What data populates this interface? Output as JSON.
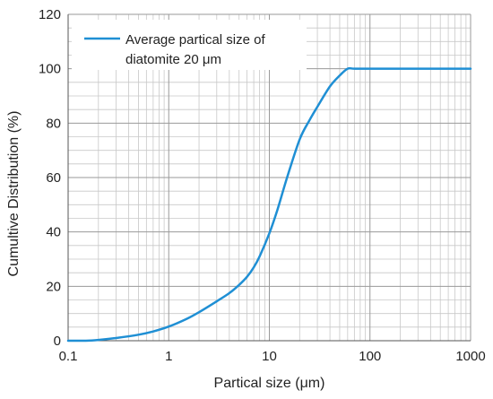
{
  "chart_data": {
    "type": "line",
    "title": "",
    "xlabel": "Partical size (μm)",
    "ylabel": "Cumultive Distribution (%)",
    "x_scale": "log",
    "xlim": [
      0.1,
      1000
    ],
    "ylim": [
      0,
      120
    ],
    "x_ticks": [
      "0.1",
      "1",
      "10",
      "100",
      "1000"
    ],
    "y_ticks": [
      "0",
      "20",
      "40",
      "60",
      "80",
      "100",
      "120"
    ],
    "grid": true,
    "legend_position": "top-left",
    "legend_lines": [
      "Average partical size of",
      "diatomite 20 μm"
    ],
    "series": [
      {
        "name": "Average partical size of diatomite 20 μm",
        "color": "#1f8fd4",
        "x": [
          0.1,
          0.15,
          0.2,
          0.3,
          0.5,
          0.7,
          1,
          1.5,
          2,
          3,
          4,
          5,
          6,
          7,
          8,
          10,
          12,
          15,
          20,
          25,
          30,
          40,
          50,
          60,
          70,
          100,
          200,
          500,
          1000
        ],
        "y": [
          0,
          0,
          0.3,
          1,
          2.2,
          3.4,
          5.2,
          8,
          10.5,
          14.5,
          17.5,
          20.5,
          23.5,
          27,
          31,
          39.5,
          48,
          60,
          74,
          81,
          86,
          93.5,
          97.5,
          100,
          100,
          100,
          100,
          100,
          100
        ]
      }
    ]
  }
}
